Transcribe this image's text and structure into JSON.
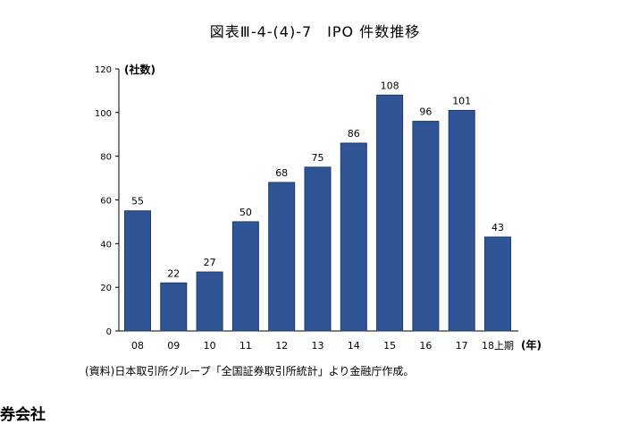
{
  "page": {
    "title": "図表Ⅲ-4-(4)-7　IPO 件数推移",
    "source": "(資料)日本取引所グループ「全国証券取引所統計」より金融庁作成。",
    "footer_heading": "券会社"
  },
  "chart_data": {
    "type": "bar",
    "title": "図表Ⅲ-4-(4)-7　IPO 件数推移",
    "ylabel": "(社数)",
    "xlabel": "(年)",
    "categories": [
      "08",
      "09",
      "10",
      "11",
      "12",
      "13",
      "14",
      "15",
      "16",
      "17",
      "18上期"
    ],
    "values": [
      55,
      22,
      27,
      50,
      68,
      75,
      86,
      108,
      96,
      101,
      43
    ],
    "ylim": [
      0,
      120
    ],
    "yticks": [
      0,
      20,
      40,
      60,
      80,
      100,
      120
    ],
    "bar_color": "#2F5597",
    "bar_border": "#1F3864",
    "grid": false,
    "legend": "none"
  }
}
